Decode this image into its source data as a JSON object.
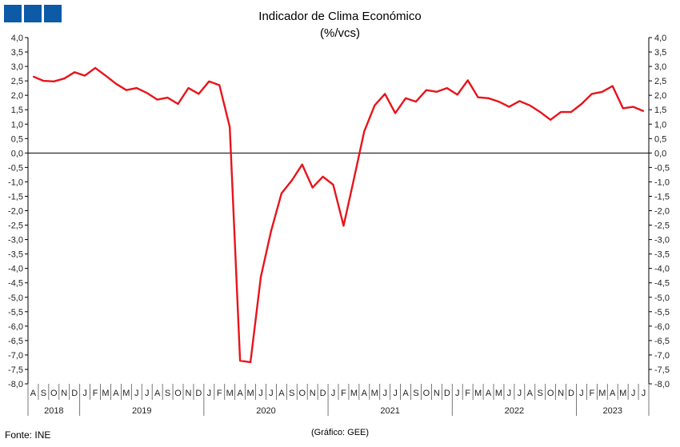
{
  "logo": {
    "icon": "ine-logo-icon",
    "color": "#0d5aa7"
  },
  "footer": {
    "source": "Fonte: INE",
    "credit": "(Gráfico: GEE)"
  },
  "chart_data": {
    "type": "line",
    "title": "Indicador de Clima Económico",
    "subtitle": "(%/vcs)",
    "xlabel": "",
    "ylabel": "",
    "ylim": [
      -8,
      4
    ],
    "ytick_step": 0.5,
    "grid": false,
    "y_axis": "both sides",
    "line_color": "#e8141b",
    "month_labels": [
      "A",
      "S",
      "O",
      "N",
      "D",
      "J",
      "F",
      "M",
      "A",
      "M",
      "J",
      "J",
      "A",
      "S",
      "O",
      "N",
      "D",
      "J",
      "F",
      "M",
      "A",
      "M",
      "J",
      "J",
      "A",
      "S",
      "O",
      "N",
      "D",
      "J",
      "F",
      "M",
      "A",
      "M",
      "J",
      "J",
      "A",
      "S",
      "O",
      "N",
      "D",
      "J",
      "F",
      "M",
      "A",
      "M",
      "J",
      "J",
      "A",
      "S",
      "O",
      "N",
      "D",
      "J",
      "F",
      "M",
      "A",
      "M",
      "J",
      "J"
    ],
    "year_groups": [
      {
        "label": "2018",
        "months": 5
      },
      {
        "label": "2019",
        "months": 12
      },
      {
        "label": "2020",
        "months": 12
      },
      {
        "label": "2021",
        "months": 12
      },
      {
        "label": "2022",
        "months": 12
      },
      {
        "label": "2023",
        "months": 7
      }
    ],
    "series": [
      {
        "values": [
          2.65,
          2.5,
          2.48,
          2.58,
          2.8,
          2.68,
          2.95,
          2.68,
          2.4,
          2.18,
          2.25,
          2.08,
          1.85,
          1.92,
          1.7,
          2.25,
          2.05,
          2.48,
          2.35,
          0.9,
          -7.2,
          -7.25,
          -4.3,
          -2.7,
          -1.4,
          -0.95,
          -0.4,
          -1.2,
          -0.82,
          -1.1,
          -2.52,
          -0.9,
          0.75,
          1.65,
          2.05,
          1.38,
          1.9,
          1.78,
          2.18,
          2.12,
          2.25,
          2.02,
          2.52,
          1.93,
          1.9,
          1.78,
          1.6,
          1.8,
          1.65,
          1.42,
          1.15,
          1.42,
          1.42,
          1.7,
          2.05,
          2.12,
          2.32,
          1.55,
          1.6,
          1.45
        ]
      }
    ]
  }
}
